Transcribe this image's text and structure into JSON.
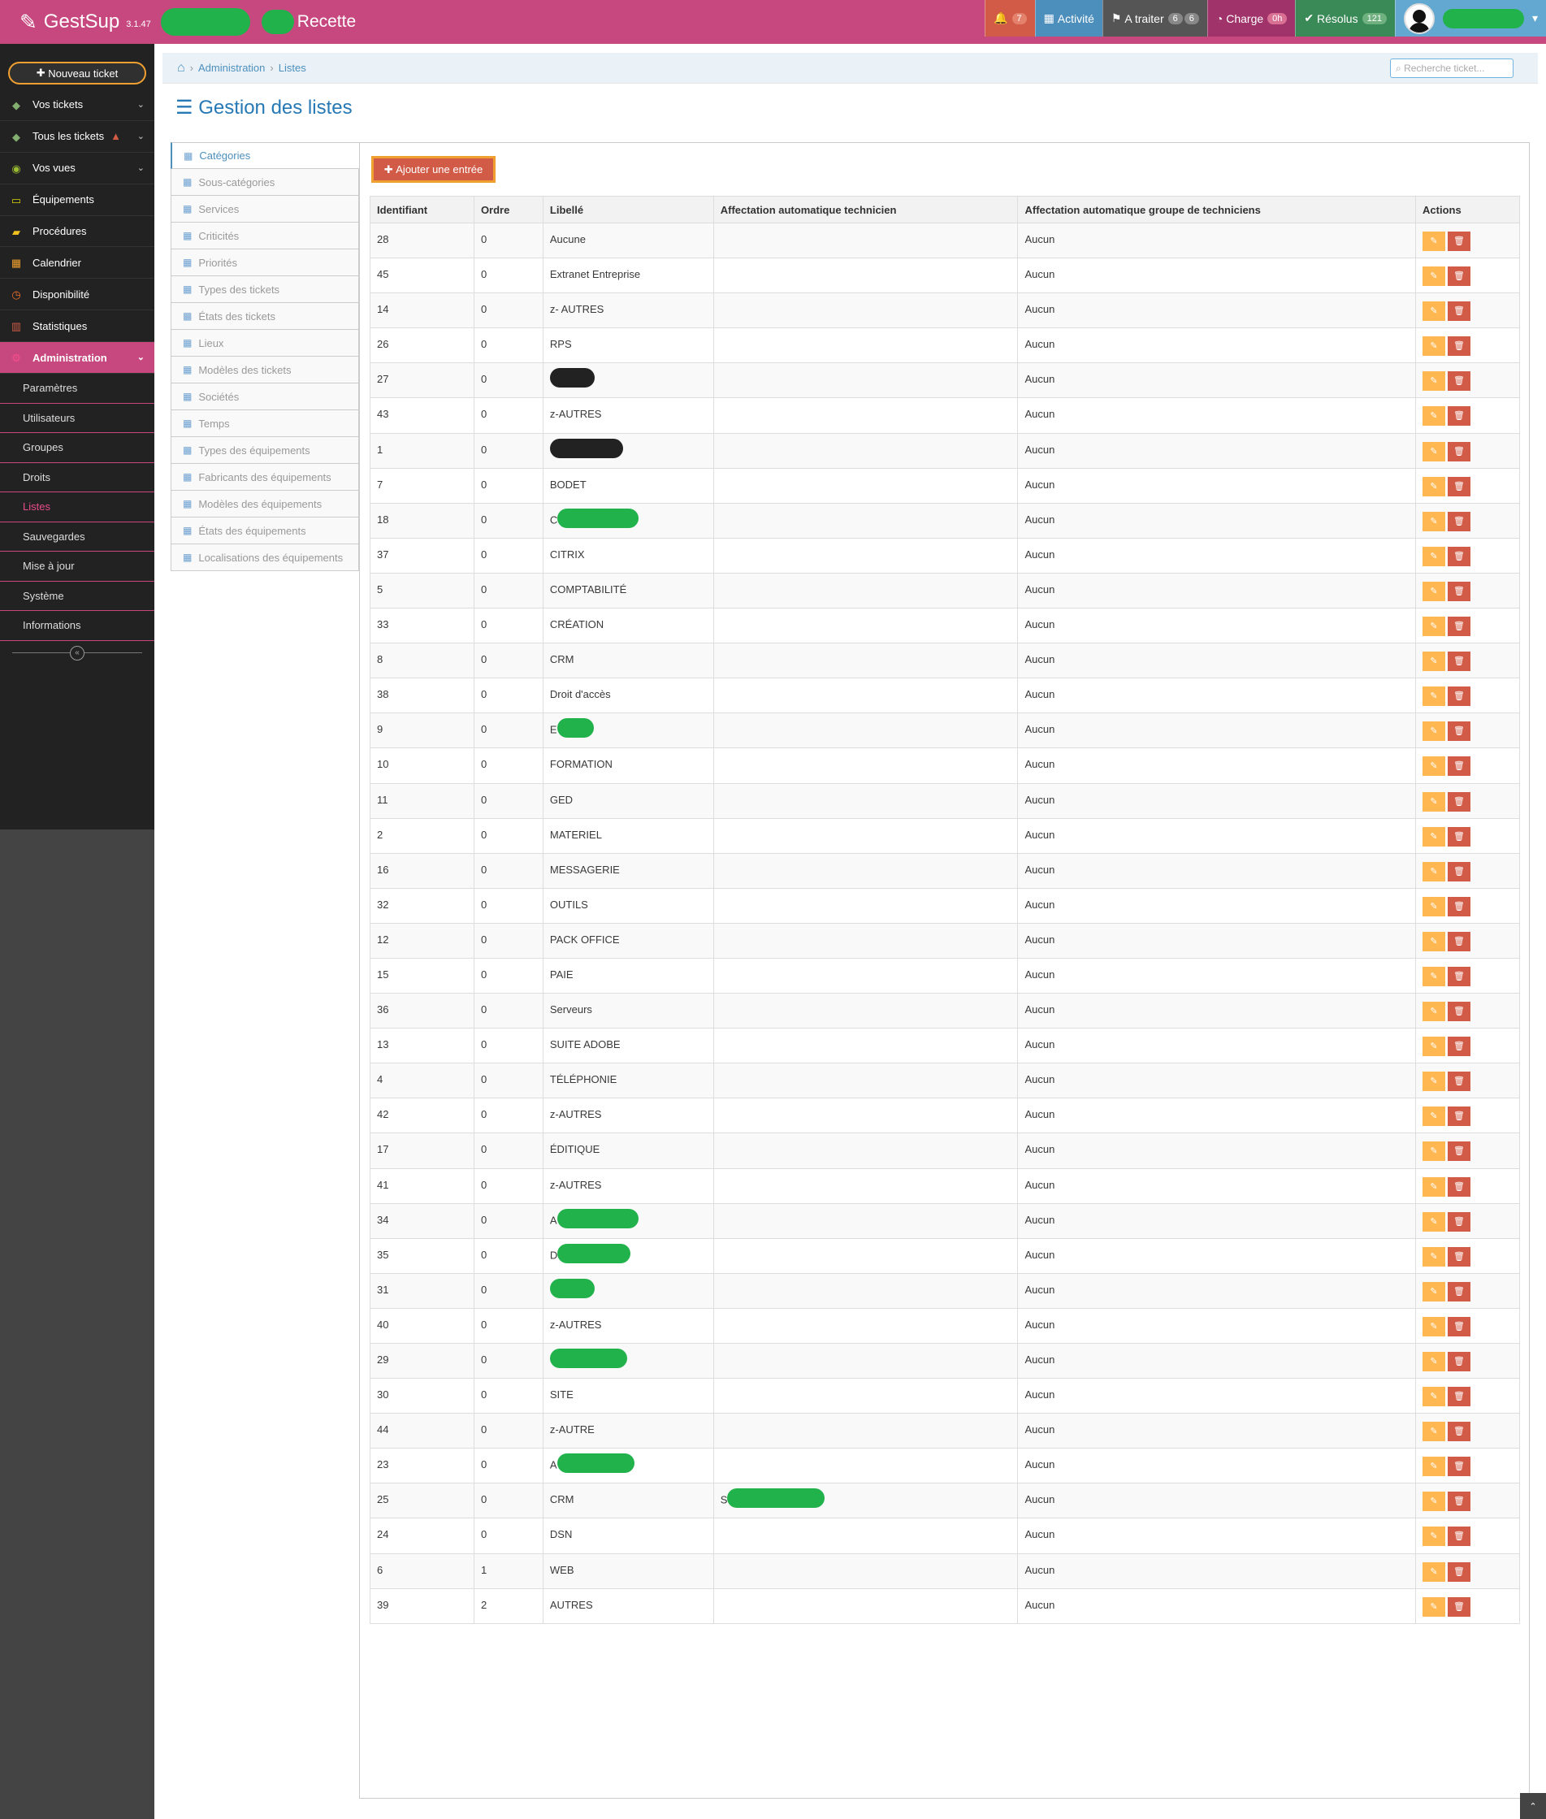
{
  "app": {
    "name": "GestSup",
    "version": "3.1.47",
    "suffix": "Recette"
  },
  "navbar": {
    "notifications": {
      "count": "7"
    },
    "activity": "Activité",
    "totreat": {
      "label": "A traiter",
      "b1": "6",
      "b2": "6"
    },
    "charge": {
      "label": "Charge",
      "badge": "0h"
    },
    "resolved": {
      "label": "Résolus",
      "badge": "121"
    }
  },
  "sidebar": {
    "new_ticket": "Nouveau ticket",
    "items": [
      {
        "label": "Vos tickets"
      },
      {
        "label": "Tous les tickets"
      },
      {
        "label": "Vos vues"
      },
      {
        "label": "Équipements"
      },
      {
        "label": "Procédures"
      },
      {
        "label": "Calendrier"
      },
      {
        "label": "Disponibilité"
      },
      {
        "label": "Statistiques"
      },
      {
        "label": "Administration"
      }
    ],
    "sub": [
      "Paramètres",
      "Utilisateurs",
      "Groupes",
      "Droits",
      "Listes",
      "Sauvegardes",
      "Mise à jour",
      "Système",
      "Informations"
    ]
  },
  "breadcrumb": {
    "admin": "Administration",
    "lists": "Listes"
  },
  "search": {
    "placeholder": "Recherche ticket..."
  },
  "page_title": "Gestion des listes",
  "tabs": [
    "Catégories",
    "Sous-catégories",
    "Services",
    "Criticités",
    "Priorités",
    "Types des tickets",
    "États des tickets",
    "Lieux",
    "Modèles des tickets",
    "Sociétés",
    "Temps",
    "Types des équipements",
    "Fabricants des équipements",
    "Modèles des équipements",
    "États des équipements",
    "Localisations des équipements"
  ],
  "add_button": "Ajouter une entrée",
  "columns": [
    "Identifiant",
    "Ordre",
    "Libellé",
    "Affectation automatique technicien",
    "Affectation automatique groupe de techniciens",
    "Actions"
  ],
  "rows": [
    [
      "28",
      "0",
      "Aucune",
      "",
      "Aucun"
    ],
    [
      "45",
      "0",
      "Extranet Entreprise",
      "",
      "Aucun"
    ],
    [
      "14",
      "0",
      "z- AUTRES",
      "",
      "Aucun"
    ],
    [
      "26",
      "0",
      "RPS",
      "",
      "Aucun"
    ],
    [
      "27",
      "0",
      "",
      "",
      "Aucun"
    ],
    [
      "43",
      "0",
      "z-AUTRES",
      "",
      "Aucun"
    ],
    [
      "1",
      "0",
      "",
      "",
      "Aucun"
    ],
    [
      "7",
      "0",
      "BODET",
      "",
      "Aucun"
    ],
    [
      "18",
      "0",
      "C",
      "",
      "Aucun"
    ],
    [
      "37",
      "0",
      "CITRIX",
      "",
      "Aucun"
    ],
    [
      "5",
      "0",
      "COMPTABILITÉ",
      "",
      "Aucun"
    ],
    [
      "33",
      "0",
      "CRÉATION",
      "",
      "Aucun"
    ],
    [
      "8",
      "0",
      "CRM",
      "",
      "Aucun"
    ],
    [
      "38",
      "0",
      "Droit d'accès",
      "",
      "Aucun"
    ],
    [
      "9",
      "0",
      "E",
      "",
      "Aucun"
    ],
    [
      "10",
      "0",
      "FORMATION",
      "",
      "Aucun"
    ],
    [
      "11",
      "0",
      "GED",
      "",
      "Aucun"
    ],
    [
      "2",
      "0",
      "MATERIEL",
      "",
      "Aucun"
    ],
    [
      "16",
      "0",
      "MESSAGERIE",
      "",
      "Aucun"
    ],
    [
      "32",
      "0",
      "OUTILS",
      "",
      "Aucun"
    ],
    [
      "12",
      "0",
      "PACK OFFICE",
      "",
      "Aucun"
    ],
    [
      "15",
      "0",
      "PAIE",
      "",
      "Aucun"
    ],
    [
      "36",
      "0",
      "Serveurs",
      "",
      "Aucun"
    ],
    [
      "13",
      "0",
      "SUITE ADOBE",
      "",
      "Aucun"
    ],
    [
      "4",
      "0",
      "TÉLÉPHONIE",
      "",
      "Aucun"
    ],
    [
      "42",
      "0",
      "z-AUTRES",
      "",
      "Aucun"
    ],
    [
      "17",
      "0",
      "ÉDITIQUE",
      "",
      "Aucun"
    ],
    [
      "41",
      "0",
      "z-AUTRES",
      "",
      "Aucun"
    ],
    [
      "34",
      "0",
      "A",
      "",
      "Aucun"
    ],
    [
      "35",
      "0",
      "D",
      "",
      "Aucun"
    ],
    [
      "31",
      "0",
      "",
      "",
      "Aucun"
    ],
    [
      "40",
      "0",
      "z-AUTRES",
      "",
      "Aucun"
    ],
    [
      "29",
      "0",
      "",
      "",
      "Aucun"
    ],
    [
      "30",
      "0",
      "SITE",
      "",
      "Aucun"
    ],
    [
      "44",
      "0",
      "z-AUTRE",
      "",
      "Aucun"
    ],
    [
      "23",
      "0",
      "A",
      "",
      "Aucun"
    ],
    [
      "25",
      "0",
      "CRM",
      "S",
      "Aucun"
    ],
    [
      "24",
      "0",
      "DSN",
      "",
      "Aucun"
    ],
    [
      "6",
      "1",
      "WEB",
      "",
      "Aucun"
    ],
    [
      "39",
      "2",
      "AUTRES",
      "",
      "Aucun"
    ]
  ]
}
